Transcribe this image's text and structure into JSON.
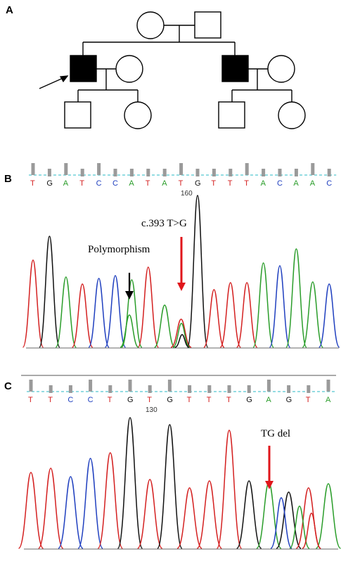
{
  "panels": {
    "a": {
      "label": "A"
    },
    "b": {
      "label": "B",
      "sequence": [
        "T",
        "G",
        "A",
        "T",
        "C",
        "C",
        "A",
        "T",
        "A",
        "T",
        "G",
        "T",
        "T",
        "T",
        "A",
        "C",
        "A",
        "A",
        "C"
      ],
      "position_label": "160",
      "annotations": {
        "polymorphism": "Polymorphism",
        "mutation": "c.393 T>G"
      }
    },
    "c": {
      "label": "C",
      "sequence": [
        "T",
        "T",
        "C",
        "C",
        "T",
        "G",
        "T",
        "G",
        "T",
        "T",
        "T",
        "G",
        "A",
        "G",
        "T",
        "A"
      ],
      "position_label": "130",
      "annotations": {
        "deletion": "TG del"
      }
    }
  },
  "colors": {
    "A": "#2a9d2a",
    "C": "#1f3fbf",
    "G": "#111111",
    "T": "#d42020",
    "arrow_black": "#000000",
    "arrow_red": "#e0161b",
    "affected": "#000000",
    "baseline": "#55c8d0"
  }
}
